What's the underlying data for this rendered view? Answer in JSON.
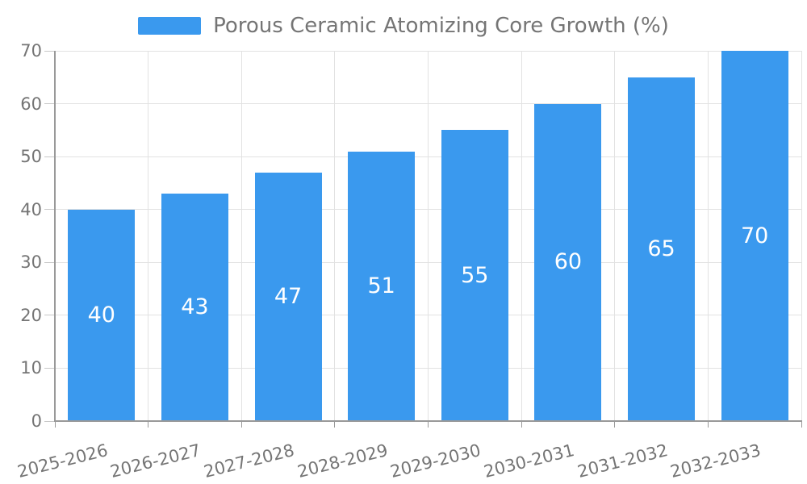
{
  "chart_data": {
    "type": "bar",
    "title": "Porous Ceramic Atomizing Core Growth (%)",
    "categories": [
      "2025-2026",
      "2026-2027",
      "2027-2028",
      "2028-2029",
      "2029-2030",
      "2030-2031",
      "2031-2032",
      "2032-2033"
    ],
    "series": [
      {
        "name": "Porous Ceramic Atomizing Core Growth (%)",
        "values": [
          40,
          43,
          47,
          51,
          55,
          60,
          65,
          70
        ]
      }
    ],
    "xlabel": "",
    "ylabel": "",
    "ylim": [
      0,
      70
    ],
    "yticks": [
      0,
      10,
      20,
      30,
      40,
      50,
      60,
      70
    ],
    "grid": true,
    "legend_position": "top-center",
    "value_label_position": "inside-center",
    "x_tick_label_rotation_deg": 14,
    "colors": {
      "bar": "#3A99EE",
      "value_label": "#FFFFFF",
      "axis_label": "#757575",
      "legend_label": "#757575",
      "axis_line": "#999999",
      "grid_line": "#E2E2E2",
      "tick_line": "#C8C8C8",
      "background": "#FFFFFF"
    }
  }
}
